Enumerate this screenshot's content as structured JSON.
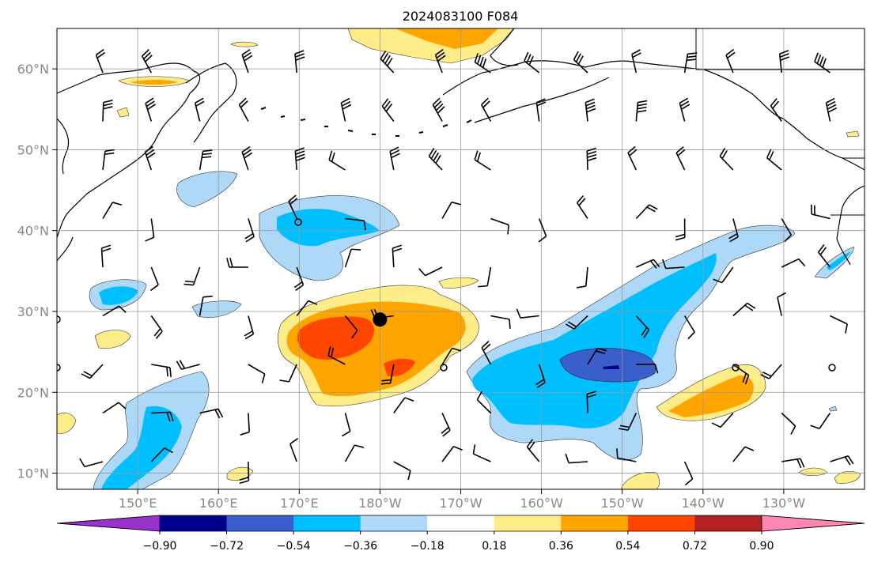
{
  "title": "2024083100 F084",
  "map": {
    "lat_range": [
      8,
      65
    ],
    "lon_range": [
      140,
      240
    ],
    "lat_labels": [
      {
        "lat": 60,
        "label": "60°N"
      },
      {
        "lat": 50,
        "label": "50°N"
      },
      {
        "lat": 40,
        "label": "40°N"
      },
      {
        "lat": 30,
        "label": "30°N"
      },
      {
        "lat": 20,
        "label": "20°N"
      },
      {
        "lat": 10,
        "label": "10°N"
      }
    ],
    "lon_labels": [
      {
        "lon": 150,
        "label": "150°E"
      },
      {
        "lon": 160,
        "label": "160°E"
      },
      {
        "lon": 170,
        "label": "170°E"
      },
      {
        "lon": 180,
        "label": "180°W"
      },
      {
        "lon": 190,
        "label": "170°W"
      },
      {
        "lon": 200,
        "label": "160°W"
      },
      {
        "lon": 210,
        "label": "150°W"
      },
      {
        "lon": 220,
        "label": "140°W"
      },
      {
        "lon": 230,
        "label": "130°W"
      }
    ],
    "grid": true,
    "marker": {
      "lon": 180,
      "lat": 29
    }
  },
  "colorbar": {
    "colors": [
      "#9932cc",
      "#00008b",
      "#3a5fcd",
      "#00bfff",
      "#add8f7",
      "#ffffff",
      "#ffed8a",
      "#ffa500",
      "#ff4500",
      "#b22222",
      "#ff85b3"
    ],
    "tick_labels": [
      "−0.90",
      "−0.72",
      "−0.54",
      "−0.36",
      "−0.18",
      "0.18",
      "0.36",
      "0.54",
      "0.72",
      "0.90"
    ]
  }
}
